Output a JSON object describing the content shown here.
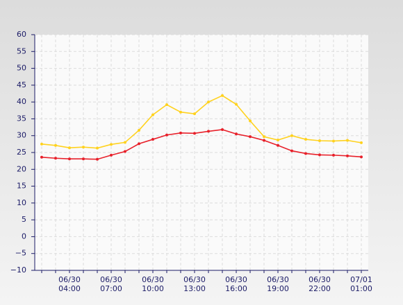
{
  "chart_data": {
    "type": "line",
    "categories": [
      null,
      null,
      [
        "06/30",
        "04:00"
      ],
      null,
      null,
      [
        "06/30",
        "07:00"
      ],
      null,
      null,
      [
        "06/30",
        "10:00"
      ],
      null,
      null,
      [
        "06/30",
        "13:00"
      ],
      null,
      null,
      [
        "06/30",
        "16:00"
      ],
      null,
      null,
      [
        "06/30",
        "19:00"
      ],
      null,
      null,
      [
        "06/30",
        "22:00"
      ],
      null,
      null,
      [
        "07/01",
        "01:00"
      ]
    ],
    "series": [
      {
        "color": "#ffd21e",
        "values": [
          27.5,
          27.1,
          26.4,
          26.6,
          26.3,
          27.4,
          28,
          31.6,
          36.2,
          39.2,
          37,
          36.5,
          40,
          41.9,
          39.3,
          34.4,
          29.7,
          28.7,
          30,
          28.9,
          28.5,
          28.4,
          28.6,
          27.9
        ]
      },
      {
        "color": "#e8202a",
        "values": [
          23.6,
          23.3,
          23.1,
          23.1,
          23,
          24.2,
          25.3,
          27.6,
          28.9,
          30.2,
          30.8,
          30.7,
          31.3,
          31.8,
          30.5,
          29.7,
          28.6,
          27.1,
          25.5,
          24.7,
          24.3,
          24.2,
          24,
          23.7
        ]
      }
    ],
    "ylim": [
      -10,
      60
    ],
    "yticks": [
      {
        "value": -10,
        "label": "−10"
      },
      {
        "value": -5,
        "label": "−5"
      },
      0,
      5,
      10,
      15,
      20,
      25,
      30,
      35,
      40,
      45,
      50,
      55,
      60
    ],
    "grid": true
  }
}
